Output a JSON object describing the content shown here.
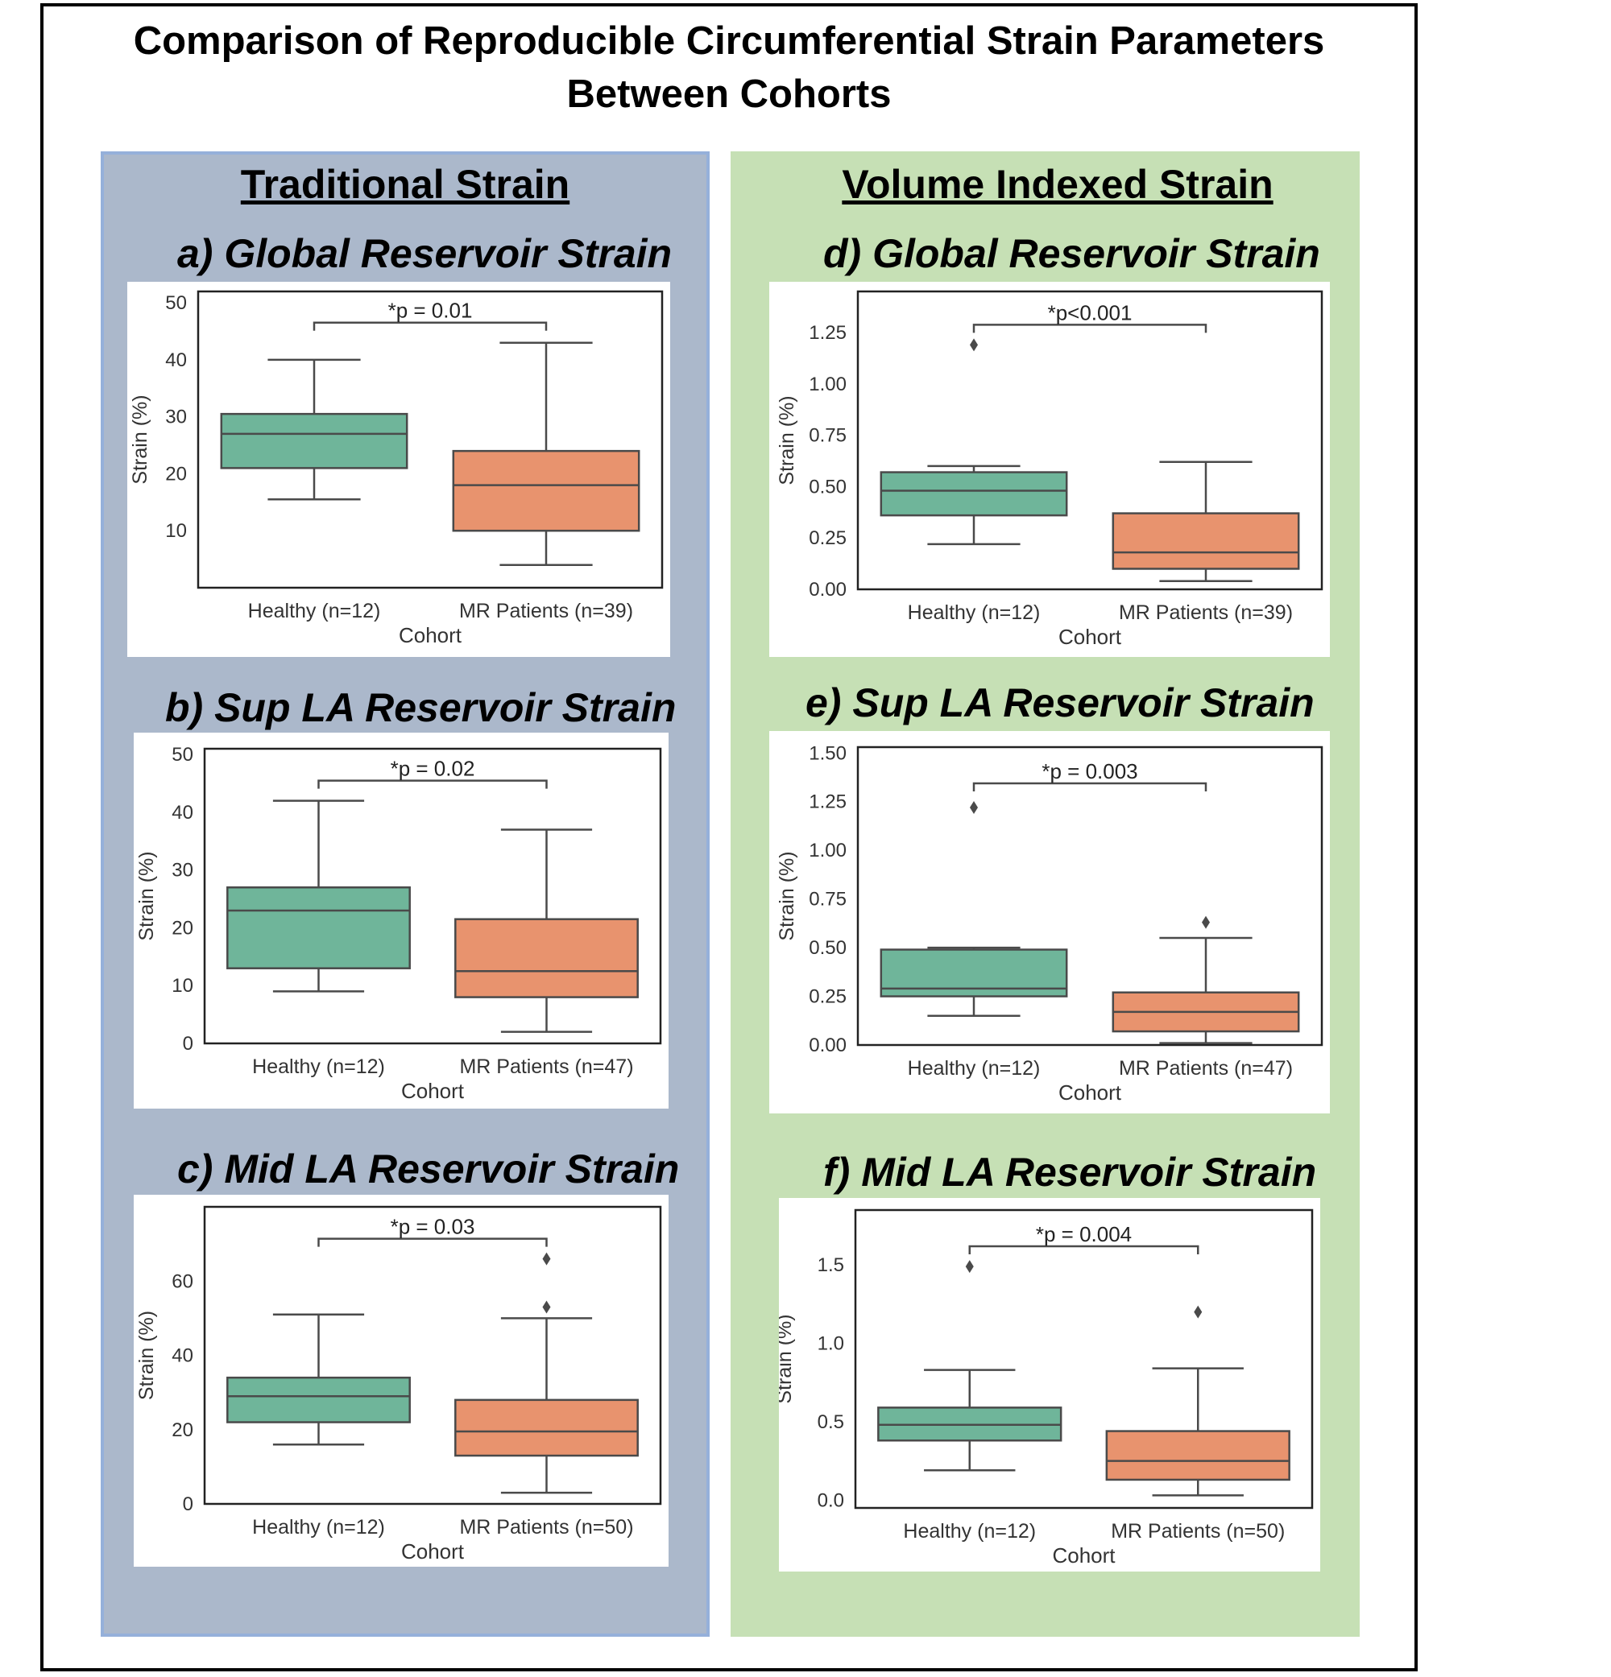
{
  "figure": {
    "title_line1": "Comparison of Reproducible Circumferential Strain Parameters",
    "title_line2": "Between Cohorts",
    "left_heading": "Traditional Strain",
    "right_heading": "Volume Indexed Strain"
  },
  "colors": {
    "healthy": "#6fb59a",
    "mr": "#e8936e",
    "line": "#4a4a4a"
  },
  "chart_data": [
    {
      "id": "a",
      "type": "box",
      "title": "a) Global Reservoir Strain",
      "xlabel": "Cohort",
      "ylabel": "Strain (%)",
      "ylim": [
        0,
        52
      ],
      "yticks": [
        10,
        20,
        30,
        40,
        50
      ],
      "ytick_labels": [
        "10",
        "20",
        "30",
        "40",
        "50"
      ],
      "annotation": "*p = 0.01",
      "categories": [
        "Healthy (n=12)",
        "MR Patients (n=39)"
      ],
      "boxes": [
        {
          "whisker_low": 15.5,
          "q1": 21,
          "median": 27,
          "q3": 30.5,
          "whisker_high": 40,
          "outliers": []
        },
        {
          "whisker_low": 4,
          "q1": 10,
          "median": 18,
          "q3": 24,
          "whisker_high": 43,
          "outliers": []
        }
      ]
    },
    {
      "id": "b",
      "type": "box",
      "title": "b) Sup LA Reservoir Strain",
      "xlabel": "Cohort",
      "ylabel": "Strain (%)",
      "ylim": [
        0,
        51
      ],
      "yticks": [
        0,
        10,
        20,
        30,
        40,
        50
      ],
      "ytick_labels": [
        "0",
        "10",
        "20",
        "30",
        "40",
        "50"
      ],
      "annotation": "*p = 0.02",
      "categories": [
        "Healthy (n=12)",
        "MR Patients (n=47)"
      ],
      "boxes": [
        {
          "whisker_low": 9,
          "q1": 13,
          "median": 23,
          "q3": 27,
          "whisker_high": 42,
          "outliers": []
        },
        {
          "whisker_low": 2,
          "q1": 8,
          "median": 12.5,
          "q3": 21.5,
          "whisker_high": 37,
          "outliers": []
        }
      ]
    },
    {
      "id": "c",
      "type": "box",
      "title": "c) Mid LA Reservoir Strain",
      "xlabel": "Cohort",
      "ylabel": "Strain (%)",
      "ylim": [
        0,
        80
      ],
      "yticks": [
        0,
        20,
        40,
        60
      ],
      "ytick_labels": [
        "0",
        "20",
        "40",
        "60"
      ],
      "annotation": "*p = 0.03",
      "categories": [
        "Healthy (n=12)",
        "MR Patients (n=50)"
      ],
      "boxes": [
        {
          "whisker_low": 16,
          "q1": 22,
          "median": 29,
          "q3": 34,
          "whisker_high": 51,
          "outliers": []
        },
        {
          "whisker_low": 3,
          "q1": 13,
          "median": 19.5,
          "q3": 28,
          "whisker_high": 50,
          "outliers": [
            53,
            66
          ]
        }
      ]
    },
    {
      "id": "d",
      "type": "box",
      "title": "d) Global Reservoir Strain",
      "xlabel": "Cohort",
      "ylabel": "Strain (%)",
      "ylim": [
        0,
        1.45
      ],
      "yticks": [
        0,
        0.25,
        0.5,
        0.75,
        1.0,
        1.25
      ],
      "ytick_labels": [
        "0.00",
        "0.25",
        "0.50",
        "0.75",
        "1.00",
        "1.25"
      ],
      "annotation": "*p<0.001",
      "categories": [
        "Healthy (n=12)",
        "MR Patients (n=39)"
      ],
      "boxes": [
        {
          "whisker_low": 0.22,
          "q1": 0.36,
          "median": 0.48,
          "q3": 0.57,
          "whisker_high": 0.6,
          "outliers": [
            1.19
          ]
        },
        {
          "whisker_low": 0.04,
          "q1": 0.1,
          "median": 0.18,
          "q3": 0.37,
          "whisker_high": 0.62,
          "outliers": []
        }
      ]
    },
    {
      "id": "e",
      "type": "box",
      "title": "e) Sup LA Reservoir Strain",
      "xlabel": "Cohort",
      "ylabel": "Strain (%)",
      "ylim": [
        0,
        1.53
      ],
      "yticks": [
        0,
        0.25,
        0.5,
        0.75,
        1.0,
        1.25,
        1.5
      ],
      "ytick_labels": [
        "0.00",
        "0.25",
        "0.50",
        "0.75",
        "1.00",
        "1.25",
        "1.50"
      ],
      "annotation": "*p = 0.003",
      "categories": [
        "Healthy (n=12)",
        "MR Patients (n=47)"
      ],
      "boxes": [
        {
          "whisker_low": 0.15,
          "q1": 0.25,
          "median": 0.29,
          "q3": 0.49,
          "whisker_high": 0.5,
          "outliers": [
            1.22
          ]
        },
        {
          "whisker_low": 0.01,
          "q1": 0.07,
          "median": 0.17,
          "q3": 0.27,
          "whisker_high": 0.55,
          "outliers": [
            0.63
          ]
        }
      ]
    },
    {
      "id": "f",
      "type": "box",
      "title": "f) Mid LA Reservoir Strain",
      "xlabel": "Cohort",
      "ylabel": "Strain (%)",
      "ylim": [
        -0.05,
        1.85
      ],
      "yticks": [
        0,
        0.5,
        1.0,
        1.5
      ],
      "ytick_labels": [
        "0.0",
        "0.5",
        "1.0",
        "1.5"
      ],
      "annotation": "*p = 0.004",
      "categories": [
        "Healthy (n=12)",
        "MR Patients (n=50)"
      ],
      "boxes": [
        {
          "whisker_low": 0.19,
          "q1": 0.38,
          "median": 0.48,
          "q3": 0.59,
          "whisker_high": 0.83,
          "outliers": [
            1.49
          ]
        },
        {
          "whisker_low": 0.03,
          "q1": 0.13,
          "median": 0.25,
          "q3": 0.44,
          "whisker_high": 0.84,
          "outliers": [
            1.2
          ]
        }
      ]
    }
  ]
}
